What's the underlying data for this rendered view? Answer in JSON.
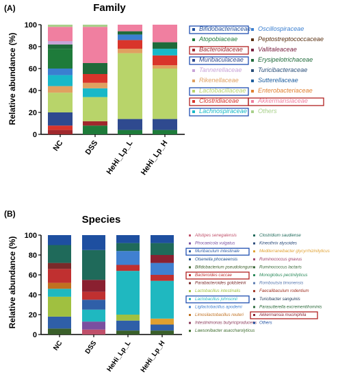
{
  "panels": [
    {
      "panel_label": "(A)",
      "title": "Family",
      "ylabel": "Relative abundance (%)",
      "yticks": [
        0,
        20,
        40,
        60,
        80,
        100
      ],
      "categories": [
        "NC",
        "DSS",
        "HeHi_Lp_L",
        "HeHi_Lp_H"
      ],
      "legend_left": [
        {
          "name": "Bifidobacteriaceae",
          "color": "#1f4e9c",
          "box": "blue"
        },
        {
          "name": "Atopobiaceae",
          "color": "#1e7b3a",
          "box": ""
        },
        {
          "name": "Bacteroidaceae",
          "color": "#a0282d",
          "box": "red"
        },
        {
          "name": "Muribaculaceae",
          "color": "#2f4a8f",
          "box": "blue"
        },
        {
          "name": "Tannerellaceae",
          "color": "#c8a4d8",
          "box": ""
        },
        {
          "name": "Rikenellaceae",
          "color": "#e0a060",
          "box": ""
        },
        {
          "name": "Lactobacillaceae",
          "color": "#b8d46a",
          "box": "blue"
        },
        {
          "name": "Clostridiaceae",
          "color": "#d9342b",
          "box": "red"
        },
        {
          "name": "Lachnospiraceae",
          "color": "#18b8c8",
          "box": "blue"
        }
      ],
      "legend_right": [
        {
          "name": "Oscillospiraceae",
          "color": "#3a7fd0",
          "box": ""
        },
        {
          "name": "Peptostreptococcaceae",
          "color": "#5a3010",
          "box": ""
        },
        {
          "name": "Vallitaleaceae",
          "color": "#7a2040",
          "box": ""
        },
        {
          "name": "Erysipelotrichaceae",
          "color": "#1f6a3a",
          "box": ""
        },
        {
          "name": "Turicibacteraceae",
          "color": "#2a4f7a",
          "box": ""
        },
        {
          "name": "Sutterellaceae",
          "color": "#1e5fa0",
          "box": ""
        },
        {
          "name": "Enterobacteriaceae",
          "color": "#e08030",
          "box": ""
        },
        {
          "name": "Akkermansiaceae",
          "color": "#f07fa0",
          "box": "red"
        },
        {
          "name": "Others",
          "color": "#a8d08a",
          "box": ""
        }
      ]
    },
    {
      "panel_label": "(B)",
      "title": "Species",
      "ylabel": "Relative abundance (%)",
      "yticks": [
        0,
        20,
        40,
        60,
        80,
        100
      ],
      "categories": [
        "NC",
        "DSS",
        "HeHi_Lp_L",
        "HeHi_Lp_H"
      ],
      "legend_left": [
        {
          "name": "Alistipes senegalensis",
          "color": "#c0506a",
          "box": ""
        },
        {
          "name": "Phocaeicola vulgatus",
          "color": "#7a4fa0",
          "box": ""
        },
        {
          "name": "Muribaculum intestinale",
          "color": "#2f5fa8",
          "box": "blue"
        },
        {
          "name": "Olsenella phocaeensis",
          "color": "#1e4f8c",
          "box": ""
        },
        {
          "name": "Bifidobacterium pseudolongum",
          "color": "#3a5f2a",
          "box": ""
        },
        {
          "name": "Bacteroides caccae",
          "color": "#c03030",
          "box": "red"
        },
        {
          "name": "Parabacteroides goldsteinii",
          "color": "#7a2a2a",
          "box": ""
        },
        {
          "name": "Lactobacillus intestinalis",
          "color": "#a0c040",
          "box": ""
        },
        {
          "name": "Lactobacillus johnsonii",
          "color": "#1fb8c0",
          "box": "blue"
        },
        {
          "name": "Ligilactobacillus apodemi",
          "color": "#4080d0",
          "box": ""
        },
        {
          "name": "Limosilactobacillus reuteri",
          "color": "#c07020",
          "box": ""
        },
        {
          "name": "Intestinimonas butyriciproducens",
          "color": "#8a3a5a",
          "box": ""
        },
        {
          "name": "Lawsonibacter asaccharolyticus",
          "color": "#3a6a2a",
          "box": ""
        }
      ],
      "legend_right": [
        {
          "name": "Clostridium saudiense",
          "color": "#1f6a5a",
          "box": ""
        },
        {
          "name": "Kineothrix alysoides",
          "color": "#2a4a7a",
          "box": ""
        },
        {
          "name": "Mediterraneibacter glycyrrhizinilyticus",
          "color": "#e0a030",
          "box": ""
        },
        {
          "name": "Ruminococcus gnavus",
          "color": "#a0406a",
          "box": ""
        },
        {
          "name": "Ruminococcus lactaris",
          "color": "#3a6a3a",
          "box": ""
        },
        {
          "name": "Monoglobus pectinilyticus",
          "color": "#2a8a5a",
          "box": ""
        },
        {
          "name": "Romboutsia timonensis",
          "color": "#5a7ab0",
          "box": ""
        },
        {
          "name": "Faecalibaculum rodentium",
          "color": "#a03020",
          "box": ""
        },
        {
          "name": "Turicibacter sanguinis",
          "color": "#203a5a",
          "box": ""
        },
        {
          "name": "Parasutterella excrementihominis",
          "color": "#2a6a3a",
          "box": ""
        },
        {
          "name": "Akkermansia muciniphila",
          "color": "#8a2030",
          "box": "red"
        },
        {
          "name": "Others",
          "color": "#1e4fa0",
          "box": ""
        }
      ]
    }
  ],
  "chart_data": [
    {
      "type": "bar",
      "stacked": true,
      "title": "Family",
      "ylabel": "Relative abundance (%)",
      "ylim": [
        0,
        100
      ],
      "categories": [
        "NC",
        "DSS",
        "HeHi_Lp_L",
        "HeHi_Lp_H"
      ],
      "segments_bottom_to_top": [
        [
          {
            "color": "#a0282d",
            "value": 4
          },
          {
            "color": "#d9342b",
            "value": 4
          },
          {
            "color": "#2f4a8f",
            "value": 12
          },
          {
            "color": "#b8d46a",
            "value": 18
          },
          {
            "color": "#e0a060",
            "value": 6
          },
          {
            "color": "#18b8c8",
            "value": 10
          },
          {
            "color": "#3a7fd0",
            "value": 6
          },
          {
            "color": "#1e7b3a",
            "value": 18
          },
          {
            "color": "#1f6a3a",
            "value": 4
          },
          {
            "color": "#c8a4d8",
            "value": 3
          },
          {
            "color": "#f07fa0",
            "value": 13
          },
          {
            "color": "#a8d08a",
            "value": 2
          }
        ],
        [
          {
            "color": "#1e7b3a",
            "value": 8
          },
          {
            "color": "#a0282d",
            "value": 4
          },
          {
            "color": "#b8d46a",
            "value": 22
          },
          {
            "color": "#18b8c8",
            "value": 8
          },
          {
            "color": "#e0a060",
            "value": 5
          },
          {
            "color": "#d9342b",
            "value": 8
          },
          {
            "color": "#1f6a3a",
            "value": 10
          },
          {
            "color": "#f07fa0",
            "value": 33
          },
          {
            "color": "#a8d08a",
            "value": 2
          }
        ],
        [
          {
            "color": "#1e7b3a",
            "value": 4
          },
          {
            "color": "#2f4a8f",
            "value": 10
          },
          {
            "color": "#b8d46a",
            "value": 60
          },
          {
            "color": "#e0a060",
            "value": 4
          },
          {
            "color": "#d9342b",
            "value": 8
          },
          {
            "color": "#3a7fd0",
            "value": 5
          },
          {
            "color": "#1f6a3a",
            "value": 3
          },
          {
            "color": "#f07fa0",
            "value": 6
          }
        ],
        [
          {
            "color": "#1e7b3a",
            "value": 4
          },
          {
            "color": "#2f4a8f",
            "value": 10
          },
          {
            "color": "#b8d46a",
            "value": 46
          },
          {
            "color": "#e0a060",
            "value": 3
          },
          {
            "color": "#d9342b",
            "value": 9
          },
          {
            "color": "#18b8c8",
            "value": 6
          },
          {
            "color": "#1f6a3a",
            "value": 6
          },
          {
            "color": "#f07fa0",
            "value": 16
          }
        ]
      ]
    },
    {
      "type": "bar",
      "stacked": true,
      "title": "Species",
      "ylabel": "Relative abundance (%)",
      "ylim": [
        0,
        100
      ],
      "categories": [
        "NC",
        "DSS",
        "HeHi_Lp_L",
        "HeHi_Lp_H"
      ],
      "segments_bottom_to_top": [
        [
          {
            "color": "#3a5f2a",
            "value": 6
          },
          {
            "color": "#2f5fa8",
            "value": 12
          },
          {
            "color": "#a0c040",
            "value": 20
          },
          {
            "color": "#1fb8c0",
            "value": 8
          },
          {
            "color": "#c07020",
            "value": 6
          },
          {
            "color": "#c03030",
            "value": 14
          },
          {
            "color": "#7a2a2a",
            "value": 6
          },
          {
            "color": "#1f6a5a",
            "value": 18
          },
          {
            "color": "#1e4fa0",
            "value": 10
          }
        ],
        [
          {
            "color": "#c0506a",
            "value": 5
          },
          {
            "color": "#7a4fa0",
            "value": 8
          },
          {
            "color": "#1fb8c0",
            "value": 12
          },
          {
            "color": "#2f5fa8",
            "value": 10
          },
          {
            "color": "#c03030",
            "value": 8
          },
          {
            "color": "#8a2030",
            "value": 12
          },
          {
            "color": "#1f6a5a",
            "value": 30
          },
          {
            "color": "#1e4fa0",
            "value": 15
          }
        ],
        [
          {
            "color": "#3a5f2a",
            "value": 4
          },
          {
            "color": "#2f5fa8",
            "value": 10
          },
          {
            "color": "#a0c040",
            "value": 6
          },
          {
            "color": "#1fb8c0",
            "value": 44
          },
          {
            "color": "#c03030",
            "value": 6
          },
          {
            "color": "#4080d0",
            "value": 14
          },
          {
            "color": "#1f6a5a",
            "value": 8
          },
          {
            "color": "#1e4fa0",
            "value": 8
          }
        ],
        [
          {
            "color": "#3a5f2a",
            "value": 4
          },
          {
            "color": "#2f5fa8",
            "value": 6
          },
          {
            "color": "#e0a030",
            "value": 6
          },
          {
            "color": "#1fb8c0",
            "value": 38
          },
          {
            "color": "#c03030",
            "value": 6
          },
          {
            "color": "#4080d0",
            "value": 12
          },
          {
            "color": "#8a2030",
            "value": 8
          },
          {
            "color": "#1f6a5a",
            "value": 12
          },
          {
            "color": "#1e4fa0",
            "value": 8
          }
        ]
      ]
    }
  ]
}
